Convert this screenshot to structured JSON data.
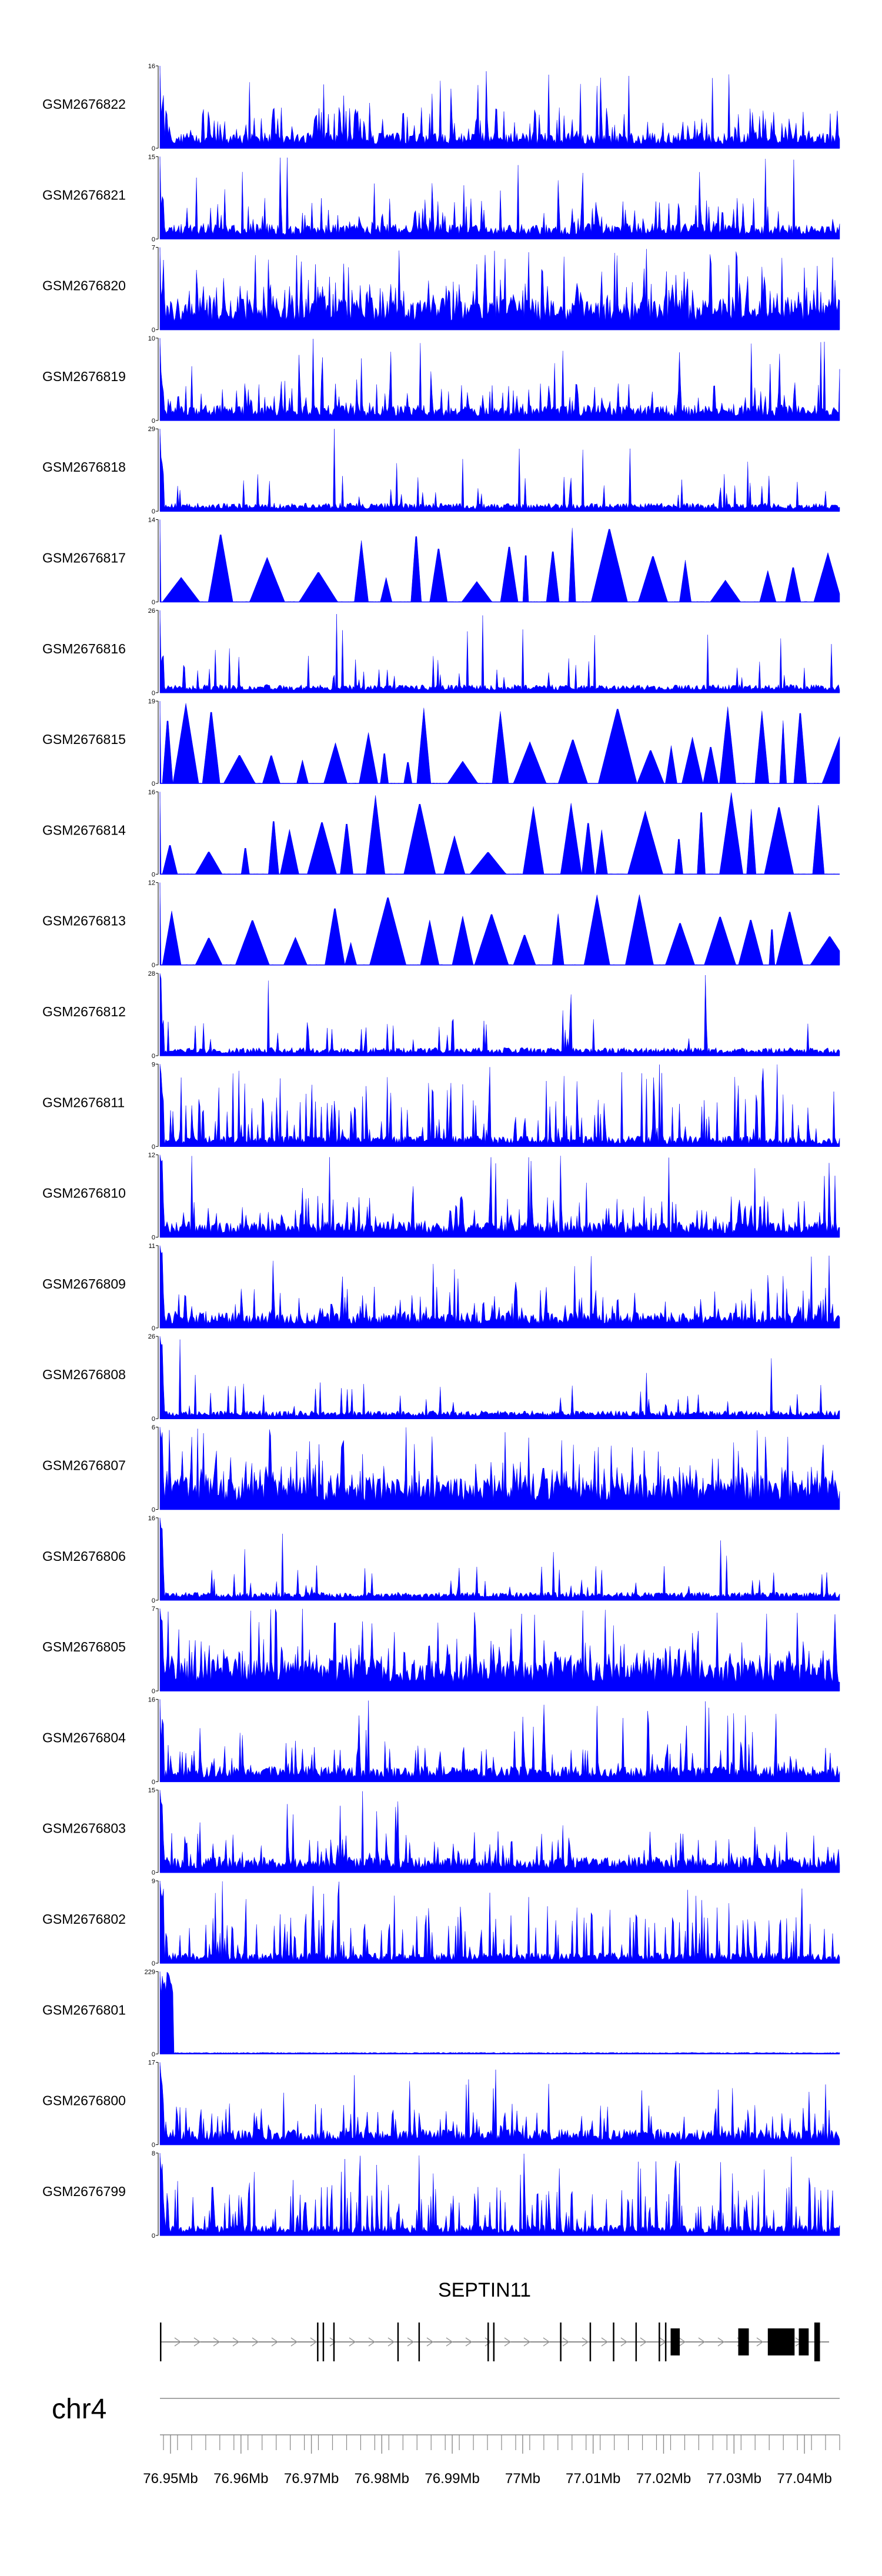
{
  "chart_data": {
    "type": "area",
    "chromosome": "chr4",
    "x_range": [
      76.9485,
      77.045
    ],
    "axis_ticks": [
      {
        "value": 76.95,
        "label": "76.95Mb"
      },
      {
        "value": 76.96,
        "label": "76.96Mb"
      },
      {
        "value": 76.97,
        "label": "76.97Mb"
      },
      {
        "value": 76.98,
        "label": "76.98Mb"
      },
      {
        "value": 76.99,
        "label": "76.99Mb"
      },
      {
        "value": 77.0,
        "label": "77Mb"
      },
      {
        "value": 77.01,
        "label": "77.01Mb"
      },
      {
        "value": 77.02,
        "label": "77.02Mb"
      },
      {
        "value": 77.03,
        "label": "77.03Mb"
      },
      {
        "value": 77.04,
        "label": "77.04Mb"
      }
    ],
    "series": [
      {
        "name": "GSM2676822",
        "ymax": "16",
        "ymin": "0",
        "style": 0,
        "seed": 822
      },
      {
        "name": "GSM2676821",
        "ymax": "15",
        "ymin": "0",
        "style": 0,
        "seed": 821
      },
      {
        "name": "GSM2676820",
        "ymax": "7",
        "ymin": "0",
        "style": 1,
        "seed": 820
      },
      {
        "name": "GSM2676819",
        "ymax": "10",
        "ymin": "0",
        "style": 0,
        "seed": 819
      },
      {
        "name": "GSM2676818",
        "ymax": "29",
        "ymin": "0",
        "style": 2,
        "seed": 818
      },
      {
        "name": "GSM2676817",
        "ymax": "14",
        "ymin": "0",
        "style": 3,
        "seed": 817
      },
      {
        "name": "GSM2676816",
        "ymax": "26",
        "ymin": "0",
        "style": 2,
        "seed": 816
      },
      {
        "name": "GSM2676815",
        "ymax": "19",
        "ymin": "0",
        "style": 3,
        "seed": 815
      },
      {
        "name": "GSM2676814",
        "ymax": "16",
        "ymin": "0",
        "style": 3,
        "seed": 814
      },
      {
        "name": "GSM2676813",
        "ymax": "12",
        "ymin": "0",
        "style": 3,
        "seed": 813
      },
      {
        "name": "GSM2676812",
        "ymax": "28",
        "ymin": "0",
        "style": 2,
        "seed": 812
      },
      {
        "name": "GSM2676811",
        "ymax": "9",
        "ymin": "0",
        "style": 4,
        "seed": 811
      },
      {
        "name": "GSM2676810",
        "ymax": "12",
        "ymin": "0",
        "style": 0,
        "seed": 810
      },
      {
        "name": "GSM2676809",
        "ymax": "11",
        "ymin": "0",
        "style": 0,
        "seed": 809
      },
      {
        "name": "GSM2676808",
        "ymax": "26",
        "ymin": "0",
        "style": 2,
        "seed": 808
      },
      {
        "name": "GSM2676807",
        "ymax": "6",
        "ymin": "0",
        "style": 1,
        "seed": 807
      },
      {
        "name": "GSM2676806",
        "ymax": "16",
        "ymin": "0",
        "style": 2,
        "seed": 806
      },
      {
        "name": "GSM2676805",
        "ymax": "7",
        "ymin": "0",
        "style": 1,
        "seed": 805
      },
      {
        "name": "GSM2676804",
        "ymax": "16",
        "ymin": "0",
        "style": 0,
        "seed": 804
      },
      {
        "name": "GSM2676803",
        "ymax": "15",
        "ymin": "0",
        "style": 0,
        "seed": 803
      },
      {
        "name": "GSM2676802",
        "ymax": "9",
        "ymin": "0",
        "style": 4,
        "seed": 802
      },
      {
        "name": "GSM2676801",
        "ymax": "229",
        "ymin": "0",
        "style": 5,
        "seed": 801
      },
      {
        "name": "GSM2676800",
        "ymax": "17",
        "ymin": "0",
        "style": 0,
        "seed": 800
      },
      {
        "name": "GSM2676799",
        "ymax": "8",
        "ymin": "0",
        "style": 4,
        "seed": 799
      }
    ],
    "gene": {
      "name": "SEPTIN11",
      "strand": "+",
      "start": 76.9485,
      "end": 77.0435,
      "exons": [
        [
          76.9485,
          76.9487
        ],
        [
          76.9708,
          76.971
        ],
        [
          76.9716,
          76.9718
        ],
        [
          76.9731,
          76.9733
        ],
        [
          76.9822,
          76.9823
        ],
        [
          76.9852,
          76.9853
        ],
        [
          76.995,
          76.9952
        ],
        [
          76.9958,
          76.996
        ],
        [
          77.0053,
          77.0055
        ],
        [
          77.0095,
          77.0097
        ],
        [
          77.0128,
          77.013
        ],
        [
          77.016,
          77.0162
        ],
        [
          77.0193,
          77.0195
        ],
        [
          77.0202,
          77.0203
        ],
        [
          77.021,
          77.0223
        ],
        [
          77.0306,
          77.0321
        ],
        [
          77.0348,
          77.0386
        ],
        [
          77.0392,
          77.0406
        ],
        [
          77.0414,
          77.0422
        ]
      ]
    }
  }
}
